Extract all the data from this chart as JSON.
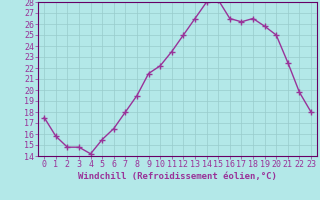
{
  "x": [
    0,
    1,
    2,
    3,
    4,
    5,
    6,
    7,
    8,
    9,
    10,
    11,
    12,
    13,
    14,
    15,
    16,
    17,
    18,
    19,
    20,
    21,
    22,
    23
  ],
  "y": [
    17.5,
    15.8,
    14.8,
    14.8,
    14.2,
    15.5,
    16.5,
    18.0,
    19.5,
    21.5,
    22.2,
    23.5,
    25.0,
    26.5,
    28.0,
    28.2,
    26.5,
    26.2,
    26.5,
    25.8,
    25.0,
    22.5,
    19.8,
    18.0
  ],
  "line_color": "#993399",
  "marker": "+",
  "marker_size": 4,
  "marker_lw": 1.0,
  "bg_color": "#b3e8e8",
  "grid_color": "#99cccc",
  "xlabel": "Windchill (Refroidissement éolien,°C)",
  "ylim": [
    14,
    28
  ],
  "xlim": [
    -0.5,
    23.5
  ],
  "yticks": [
    14,
    15,
    16,
    17,
    18,
    19,
    20,
    21,
    22,
    23,
    24,
    25,
    26,
    27,
    28
  ],
  "xticks": [
    0,
    1,
    2,
    3,
    4,
    5,
    6,
    7,
    8,
    9,
    10,
    11,
    12,
    13,
    14,
    15,
    16,
    17,
    18,
    19,
    20,
    21,
    22,
    23
  ],
  "label_fontsize": 6.5,
  "tick_fontsize": 6.0,
  "line_width": 1.0,
  "spine_color": "#660066",
  "border_color": "#660066"
}
